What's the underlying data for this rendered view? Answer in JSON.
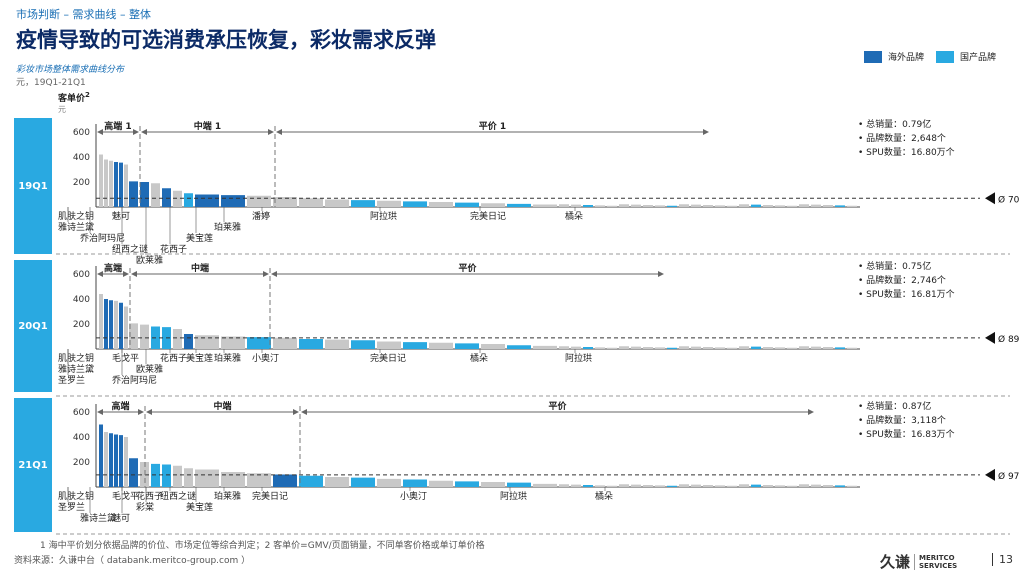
{
  "header": {
    "breadcrumb": "市场判断 – 需求曲线 – 整体",
    "title": "疫情导致的可选消费承压恢复，彩妆需求反弹",
    "subtitle": "彩妆市场整体需求曲线分布",
    "unit": "元，19Q1-21Q1"
  },
  "legend": [
    {
      "label": "海外品牌",
      "color": "#1f6bb5"
    },
    {
      "label": "国产品牌",
      "color": "#29a9e1"
    }
  ],
  "colors": {
    "overseas": "#1f6bb5",
    "domestic": "#29a9e1",
    "other": "#c8c8c8",
    "tab": "#29a9e1"
  },
  "y_axis": {
    "label": "客单价",
    "label_sup": "2",
    "unit": "元"
  },
  "chart_data": {
    "type": "bar",
    "title": "彩妆市场整体需求曲线分布",
    "ylabel": "客单价",
    "ylim": [
      0,
      640
    ],
    "yticks": [
      200,
      400,
      600
    ],
    "panels": [
      {
        "period": "19Q1",
        "mean_label": "Ø 70",
        "mean": 70,
        "segments": [
          {
            "label": "高端",
            "sup": "1"
          },
          {
            "label": "中端",
            "sup": "1"
          },
          {
            "label": "平价",
            "sup": "1"
          }
        ],
        "stats": [
          "总销量：0.79亿",
          "品牌数量：2,648个",
          "SPU数量：16.80万个"
        ],
        "bars": [
          {
            "v": 420,
            "t": "o"
          },
          {
            "v": 380,
            "t": "o"
          },
          {
            "v": 370,
            "t": "o"
          },
          {
            "v": 360,
            "t": "b"
          },
          {
            "v": 355,
            "t": "b"
          },
          {
            "v": 340,
            "t": "o"
          },
          {
            "v": 205,
            "t": "b"
          },
          {
            "v": 200,
            "t": "b"
          },
          {
            "v": 190,
            "t": "o"
          },
          {
            "v": 150,
            "t": "b"
          },
          {
            "v": 130,
            "t": "o"
          },
          {
            "v": 110,
            "t": "d"
          },
          {
            "v": 100,
            "t": "b"
          },
          {
            "v": 95,
            "t": "b"
          },
          {
            "v": 90,
            "t": "o"
          },
          {
            "v": 80,
            "t": "o"
          },
          {
            "v": 70,
            "t": "o"
          },
          {
            "v": 60,
            "t": "o"
          },
          {
            "v": 55,
            "t": "d"
          },
          {
            "v": 50,
            "t": "o"
          },
          {
            "v": 45,
            "t": "d"
          },
          {
            "v": 40,
            "t": "o"
          },
          {
            "v": 35,
            "t": "d"
          },
          {
            "v": 30,
            "t": "o"
          },
          {
            "v": 25,
            "t": "d"
          },
          {
            "v": 20,
            "t": "o"
          }
        ],
        "brands": [
          {
            "name": "肌肤之钥",
            "col": 0,
            "row": 0
          },
          {
            "name": "魅可",
            "col": 2,
            "row": 0
          },
          {
            "name": "雅诗兰黛",
            "col": 0,
            "row": 1
          },
          {
            "name": "乔治阿玛尼",
            "col": 1,
            "row": 2
          },
          {
            "name": "纽西之谜",
            "col": 2,
            "row": 3
          },
          {
            "name": "欧莱雅",
            "col": 3,
            "row": 4
          },
          {
            "name": "花西子",
            "col": 4,
            "row": 3
          },
          {
            "name": "美宝莲",
            "col": 5,
            "row": 2
          },
          {
            "name": "珀莱雅",
            "col": 6,
            "row": 1
          },
          {
            "name": "潘婷",
            "col": 7,
            "row": 0
          },
          {
            "name": "阿拉珙",
            "col": 8,
            "row": 0
          },
          {
            "name": "完美日记",
            "col": 9,
            "row": 0
          },
          {
            "name": "橘朵",
            "col": 10,
            "row": 0
          }
        ]
      },
      {
        "period": "20Q1",
        "mean_label": "Ø 89",
        "mean": 89,
        "segments": [
          {
            "label": "高端",
            "sup": ""
          },
          {
            "label": "中端",
            "sup": ""
          },
          {
            "label": "平价",
            "sup": ""
          }
        ],
        "stats": [
          "总销量：0.75亿",
          "品牌数量：2,746个",
          "SPU数量：16.81万个"
        ],
        "bars": [
          {
            "v": 440,
            "t": "o"
          },
          {
            "v": 400,
            "t": "b"
          },
          {
            "v": 390,
            "t": "b"
          },
          {
            "v": 385,
            "t": "o"
          },
          {
            "v": 370,
            "t": "b"
          },
          {
            "v": 340,
            "t": "o"
          },
          {
            "v": 205,
            "t": "o"
          },
          {
            "v": 195,
            "t": "o"
          },
          {
            "v": 180,
            "t": "d"
          },
          {
            "v": 175,
            "t": "d"
          },
          {
            "v": 160,
            "t": "o"
          },
          {
            "v": 120,
            "t": "b"
          },
          {
            "v": 110,
            "t": "o"
          },
          {
            "v": 100,
            "t": "o"
          },
          {
            "v": 95,
            "t": "d"
          },
          {
            "v": 90,
            "t": "o"
          },
          {
            "v": 80,
            "t": "d"
          },
          {
            "v": 75,
            "t": "o"
          },
          {
            "v": 70,
            "t": "d"
          },
          {
            "v": 60,
            "t": "o"
          },
          {
            "v": 55,
            "t": "d"
          },
          {
            "v": 50,
            "t": "o"
          },
          {
            "v": 45,
            "t": "d"
          },
          {
            "v": 40,
            "t": "o"
          },
          {
            "v": 30,
            "t": "d"
          },
          {
            "v": 25,
            "t": "o"
          }
        ],
        "brands": [
          {
            "name": "肌肤之钥",
            "col": 0,
            "row": 0
          },
          {
            "name": "毛戈平",
            "col": 2,
            "row": 0
          },
          {
            "name": "雅诗兰黛",
            "col": 0,
            "row": 1
          },
          {
            "name": "欧莱雅",
            "col": 3,
            "row": 1
          },
          {
            "name": "圣罗兰",
            "col": 0,
            "row": 2
          },
          {
            "name": "乔治阿玛尼",
            "col": 2,
            "row": 2
          },
          {
            "name": "花西子",
            "col": 4,
            "row": 0
          },
          {
            "name": "美宝莲",
            "col": 5,
            "row": 0
          },
          {
            "name": "珀莱雅",
            "col": 6,
            "row": 0
          },
          {
            "name": "小奥汀",
            "col": 7,
            "row": 0
          },
          {
            "name": "完美日记",
            "col": 8,
            "row": 0
          },
          {
            "name": "橘朵",
            "col": 9,
            "row": 0
          },
          {
            "name": "阿拉珙",
            "col": 10,
            "row": 0
          }
        ]
      },
      {
        "period": "21Q1",
        "mean_label": "Ø 97",
        "mean": 97,
        "segments": [
          {
            "label": "高端",
            "sup": ""
          },
          {
            "label": "中端",
            "sup": ""
          },
          {
            "label": "平价",
            "sup": ""
          }
        ],
        "stats": [
          "总销量：0.87亿",
          "品牌数量：3,118个",
          "SPU数量：16.83万个"
        ],
        "bars": [
          {
            "v": 500,
            "t": "b"
          },
          {
            "v": 440,
            "t": "o"
          },
          {
            "v": 430,
            "t": "b"
          },
          {
            "v": 420,
            "t": "b"
          },
          {
            "v": 415,
            "t": "b"
          },
          {
            "v": 400,
            "t": "o"
          },
          {
            "v": 230,
            "t": "b"
          },
          {
            "v": 200,
            "t": "o"
          },
          {
            "v": 185,
            "t": "d"
          },
          {
            "v": 180,
            "t": "d"
          },
          {
            "v": 170,
            "t": "o"
          },
          {
            "v": 150,
            "t": "o"
          },
          {
            "v": 140,
            "t": "o"
          },
          {
            "v": 120,
            "t": "o"
          },
          {
            "v": 110,
            "t": "o"
          },
          {
            "v": 100,
            "t": "b"
          },
          {
            "v": 90,
            "t": "d"
          },
          {
            "v": 80,
            "t": "o"
          },
          {
            "v": 75,
            "t": "d"
          },
          {
            "v": 65,
            "t": "o"
          },
          {
            "v": 60,
            "t": "d"
          },
          {
            "v": 50,
            "t": "o"
          },
          {
            "v": 45,
            "t": "d"
          },
          {
            "v": 40,
            "t": "o"
          },
          {
            "v": 35,
            "t": "d"
          },
          {
            "v": 25,
            "t": "o"
          }
        ],
        "brands": [
          {
            "name": "肌肤之钥",
            "col": 0,
            "row": 0
          },
          {
            "name": "毛戈平",
            "col": 2,
            "row": 0
          },
          {
            "name": "圣罗兰",
            "col": 0,
            "row": 1
          },
          {
            "name": "雅诗兰黛",
            "col": 1,
            "row": 2
          },
          {
            "name": "魅可",
            "col": 2,
            "row": 2
          },
          {
            "name": "花西子",
            "col": 3,
            "row": 0
          },
          {
            "name": "彩棠",
            "col": 3,
            "row": 1
          },
          {
            "name": "纽西之谜",
            "col": 4,
            "row": 0
          },
          {
            "name": "美宝莲",
            "col": 5,
            "row": 1
          },
          {
            "name": "珀莱雅",
            "col": 6,
            "row": 0
          },
          {
            "name": "完美日记",
            "col": 7,
            "row": 0
          },
          {
            "name": "小奥汀",
            "col": 8,
            "row": 0
          },
          {
            "name": "阿拉珙",
            "col": 9,
            "row": 0
          },
          {
            "name": "橘朵",
            "col": 10,
            "row": 0
          }
        ]
      }
    ]
  },
  "footnote": "1   海中平价划分依据品牌的价位、市场定位等综合判定；2        客单价=GMV/页面销量，不同单客价格或单订单价格",
  "source": "资料来源：久谦中台（ databank.meritco-group.com ）",
  "logo": {
    "cn": "久谦",
    "en1": "MERITCO",
    "en2": "SERVICES"
  },
  "page_number": "13"
}
